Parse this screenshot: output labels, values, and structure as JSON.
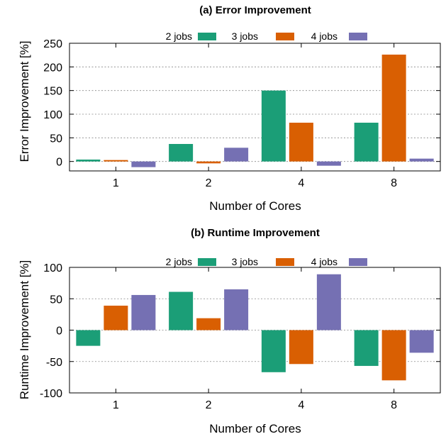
{
  "chart_data": [
    {
      "type": "bar",
      "title": "(a) Error Improvement",
      "xlabel": "Number of Cores",
      "ylabel": "Error Improvement [%]",
      "categories": [
        "1",
        "2",
        "4",
        "8"
      ],
      "ylim": [
        -20,
        250
      ],
      "yticks": [
        0,
        50,
        100,
        150,
        200,
        250
      ],
      "grid": true,
      "legend_position": "top",
      "series": [
        {
          "name": "2 jobs",
          "color": "#1b9e77",
          "values": [
            4,
            37,
            150,
            82
          ]
        },
        {
          "name": "3 jobs",
          "color": "#d95f02",
          "values": [
            3,
            -4,
            82,
            226
          ]
        },
        {
          "name": "4 jobs",
          "color": "#7570b3",
          "values": [
            -12,
            29,
            -9,
            6
          ]
        }
      ]
    },
    {
      "type": "bar",
      "title": "(b) Runtime Improvement",
      "xlabel": "Number of Cores",
      "ylabel": "Runtime Improvement [%]",
      "categories": [
        "1",
        "2",
        "4",
        "8"
      ],
      "ylim": [
        -100,
        100
      ],
      "yticks": [
        -100,
        -50,
        0,
        50,
        100
      ],
      "grid": true,
      "legend_position": "top",
      "series": [
        {
          "name": "2 jobs",
          "color": "#1b9e77",
          "values": [
            -25,
            61,
            -67,
            -57
          ]
        },
        {
          "name": "3 jobs",
          "color": "#d95f02",
          "values": [
            39,
            19,
            -54,
            -80
          ]
        },
        {
          "name": "4 jobs",
          "color": "#7570b3",
          "values": [
            56,
            65,
            89,
            -36
          ]
        }
      ]
    }
  ]
}
